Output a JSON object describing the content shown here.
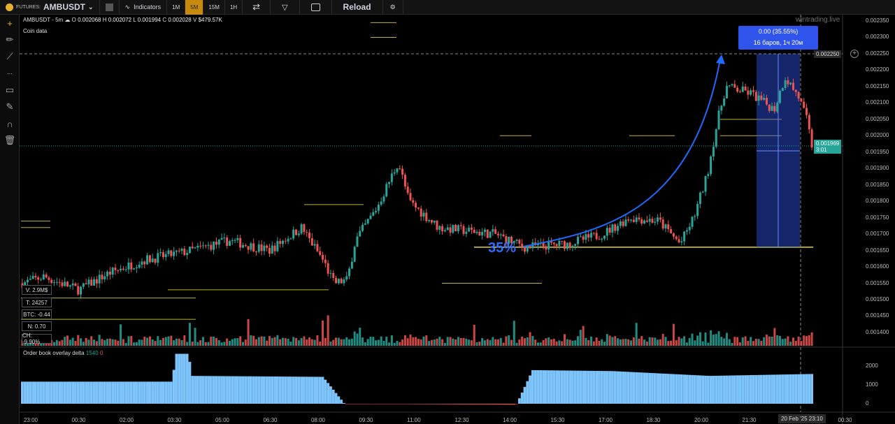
{
  "topbar": {
    "market_prefix": "FUTURES:",
    "symbol": "AMBUSDT",
    "indicators_label": "Indicators",
    "timeframes": [
      "1M",
      "5M",
      "15M",
      "1H"
    ],
    "active_timeframe": "5M",
    "reload_label": "Reload"
  },
  "legend": {
    "title": "AMBUSDT - 5m",
    "o_label": "O",
    "o": "0.002068",
    "h_label": "H",
    "h": "0.002072",
    "l_label": "L",
    "l": "0.001994",
    "c_label": "C",
    "c": "0.002028",
    "v_label": "V",
    "v": "$479.57K",
    "coin_data": "Coin data"
  },
  "stats": [
    "V: 2.9M$",
    "T: 24257",
    "BTC: -0.44",
    "N: 0.70",
    "CH: -9.90%"
  ],
  "orderbook": {
    "title": "Order book overlay delta",
    "pos": "1540",
    "neg": "0"
  },
  "price_axis": [
    "0.002350",
    "0.002300",
    "0.002250",
    "0.002200",
    "0.002150",
    "0.002100",
    "0.002050",
    "0.002000",
    "0.001950",
    "0.001900",
    "0.001850",
    "0.001800",
    "0.001750",
    "0.001700",
    "0.001650",
    "0.001600",
    "0.001550",
    "0.001500",
    "0.001450",
    "0.001400"
  ],
  "delta_axis": [
    "2000",
    "1000",
    "0"
  ],
  "time_axis": [
    "23:00",
    "00:30",
    "02:00",
    "03:30",
    "05:00",
    "06:30",
    "08:00",
    "09:30",
    "11:00",
    "12:30",
    "14:00",
    "15:30",
    "17:00",
    "18:30",
    "20:00",
    "21:30",
    "",
    "00:30"
  ],
  "current_time_label": "20 Feb '25  23:10",
  "crosshair_price": "0.002250",
  "last_price": "0.001969",
  "countdown": "3:01",
  "measure": {
    "line1": "0.00 (35.55%)",
    "line2": "16 баров, 1ч 20м"
  },
  "annotation_pct": "35%",
  "watermark": "wintrading.live",
  "colors": {
    "up": "#26a69a",
    "down": "#ef5350",
    "accent": "#c78a0c",
    "level": "#e5d33a",
    "measure": "#2f54eb",
    "delta": "#7cc4fa"
  },
  "chart_data": {
    "type": "candlestick",
    "interval": "5m",
    "ylim": [
      0.0014,
      0.00235
    ],
    "price_path": [
      [
        "22:40",
        0.00155
      ],
      [
        "23:20",
        0.00157
      ],
      [
        "00:25",
        0.00153
      ],
      [
        "01:20",
        0.00158
      ],
      [
        "02:25",
        0.00162
      ],
      [
        "03:55",
        0.00165
      ],
      [
        "05:05",
        0.00168
      ],
      [
        "06:20",
        0.00165
      ],
      [
        "07:20",
        0.00172
      ],
      [
        "08:00",
        0.00162
      ],
      [
        "08:20",
        0.00155
      ],
      [
        "08:45",
        0.00156
      ],
      [
        "09:00",
        0.00168
      ],
      [
        "09:40",
        0.00178
      ],
      [
        "10:20",
        0.00192
      ],
      [
        "10:40",
        0.0018
      ],
      [
        "11:35",
        0.00172
      ],
      [
        "13:20",
        0.0017
      ],
      [
        "14:15",
        0.00166
      ],
      [
        "15:35",
        0.00167
      ],
      [
        "16:40",
        0.0017
      ],
      [
        "17:30",
        0.00175
      ],
      [
        "18:25",
        0.00174
      ],
      [
        "19:05",
        0.00167
      ],
      [
        "19:30",
        0.00175
      ],
      [
        "19:55",
        0.00188
      ],
      [
        "20:15",
        0.00205
      ],
      [
        "20:30",
        0.00215
      ],
      [
        "21:15",
        0.00213
      ],
      [
        "22:00",
        0.00208
      ],
      [
        "22:20",
        0.00218
      ],
      [
        "22:45",
        0.00212
      ],
      [
        "23:00",
        0.00205
      ],
      [
        "23:10",
        0.00197
      ]
    ],
    "delta_path": [
      [
        "22:40",
        1150
      ],
      [
        "03:20",
        1150
      ],
      [
        "03:25",
        2600
      ],
      [
        "03:50",
        2600
      ],
      [
        "03:55",
        1450
      ],
      [
        "08:00",
        1400
      ],
      [
        "08:40",
        0
      ],
      [
        "14:00",
        -50
      ],
      [
        "14:30",
        1750
      ],
      [
        "17:00",
        1700
      ],
      [
        "20:00",
        1450
      ],
      [
        "23:10",
        1550
      ]
    ],
    "levels": [
      0.00166,
      0.002,
      0.00205,
      0.001525,
      0.00151,
      0.00155
    ]
  }
}
